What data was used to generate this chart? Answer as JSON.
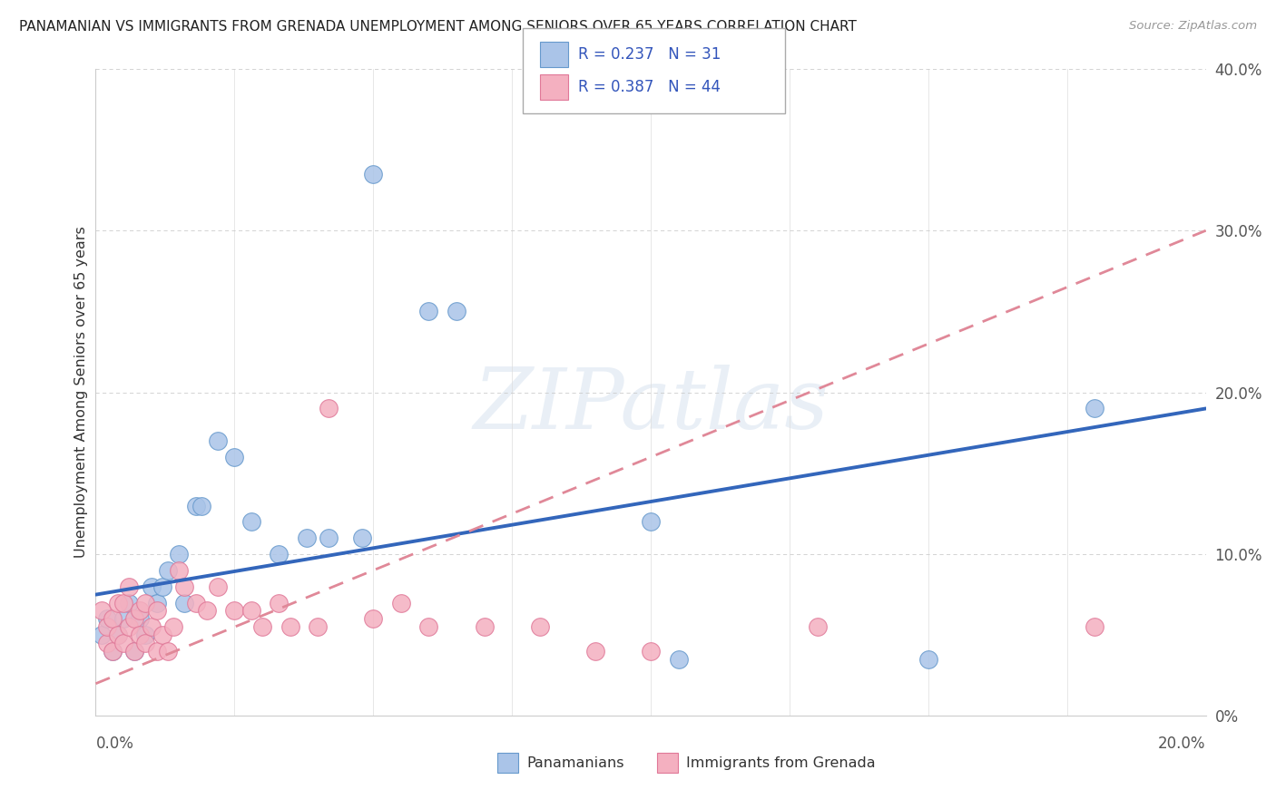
{
  "title": "PANAMANIAN VS IMMIGRANTS FROM GRENADA UNEMPLOYMENT AMONG SENIORS OVER 65 YEARS CORRELATION CHART",
  "source": "Source: ZipAtlas.com",
  "ylabel": "Unemployment Among Seniors over 65 years",
  "right_ytick_vals": [
    0.0,
    0.1,
    0.2,
    0.3,
    0.4
  ],
  "right_ytick_labels": [
    "0%",
    "10.0%",
    "20.0%",
    "30.0%",
    "40.0%"
  ],
  "xlim": [
    0.0,
    0.2
  ],
  "ylim": [
    0.0,
    0.4
  ],
  "legend_R1": "0.237",
  "legend_N1": "31",
  "legend_R2": "0.387",
  "legend_N2": "44",
  "panamanian_color": "#aac4e8",
  "panamanian_edge": "#6699cc",
  "grenada_color": "#f4b0c0",
  "grenada_edge": "#e07898",
  "trendline_pan_color": "#3366bb",
  "trendline_gren_color": "#e08898",
  "watermark_text": "ZIPatlas",
  "pan_scatter": [
    [
      0.001,
      0.05
    ],
    [
      0.002,
      0.06
    ],
    [
      0.003,
      0.04
    ],
    [
      0.004,
      0.05
    ],
    [
      0.005,
      0.06
    ],
    [
      0.006,
      0.07
    ],
    [
      0.007,
      0.04
    ],
    [
      0.008,
      0.06
    ],
    [
      0.009,
      0.05
    ],
    [
      0.01,
      0.08
    ],
    [
      0.011,
      0.07
    ],
    [
      0.012,
      0.08
    ],
    [
      0.013,
      0.09
    ],
    [
      0.015,
      0.1
    ],
    [
      0.016,
      0.07
    ],
    [
      0.018,
      0.13
    ],
    [
      0.019,
      0.13
    ],
    [
      0.022,
      0.17
    ],
    [
      0.025,
      0.16
    ],
    [
      0.028,
      0.12
    ],
    [
      0.033,
      0.1
    ],
    [
      0.038,
      0.11
    ],
    [
      0.042,
      0.11
    ],
    [
      0.048,
      0.11
    ],
    [
      0.05,
      0.335
    ],
    [
      0.06,
      0.25
    ],
    [
      0.065,
      0.25
    ],
    [
      0.1,
      0.12
    ],
    [
      0.105,
      0.035
    ],
    [
      0.15,
      0.035
    ],
    [
      0.18,
      0.19
    ]
  ],
  "gren_scatter": [
    [
      0.001,
      0.065
    ],
    [
      0.002,
      0.045
    ],
    [
      0.002,
      0.055
    ],
    [
      0.003,
      0.04
    ],
    [
      0.003,
      0.06
    ],
    [
      0.004,
      0.05
    ],
    [
      0.004,
      0.07
    ],
    [
      0.005,
      0.045
    ],
    [
      0.005,
      0.07
    ],
    [
      0.006,
      0.055
    ],
    [
      0.006,
      0.08
    ],
    [
      0.007,
      0.04
    ],
    [
      0.007,
      0.06
    ],
    [
      0.008,
      0.05
    ],
    [
      0.008,
      0.065
    ],
    [
      0.009,
      0.045
    ],
    [
      0.009,
      0.07
    ],
    [
      0.01,
      0.055
    ],
    [
      0.011,
      0.04
    ],
    [
      0.011,
      0.065
    ],
    [
      0.012,
      0.05
    ],
    [
      0.013,
      0.04
    ],
    [
      0.014,
      0.055
    ],
    [
      0.015,
      0.09
    ],
    [
      0.016,
      0.08
    ],
    [
      0.018,
      0.07
    ],
    [
      0.02,
      0.065
    ],
    [
      0.022,
      0.08
    ],
    [
      0.025,
      0.065
    ],
    [
      0.028,
      0.065
    ],
    [
      0.03,
      0.055
    ],
    [
      0.033,
      0.07
    ],
    [
      0.035,
      0.055
    ],
    [
      0.04,
      0.055
    ],
    [
      0.042,
      0.19
    ],
    [
      0.05,
      0.06
    ],
    [
      0.055,
      0.07
    ],
    [
      0.06,
      0.055
    ],
    [
      0.07,
      0.055
    ],
    [
      0.08,
      0.055
    ],
    [
      0.09,
      0.04
    ],
    [
      0.1,
      0.04
    ],
    [
      0.13,
      0.055
    ],
    [
      0.18,
      0.055
    ]
  ],
  "pan_trendline": [
    [
      0.0,
      0.075
    ],
    [
      0.2,
      0.19
    ]
  ],
  "gren_trendline": [
    [
      0.0,
      0.02
    ],
    [
      0.2,
      0.3
    ]
  ]
}
